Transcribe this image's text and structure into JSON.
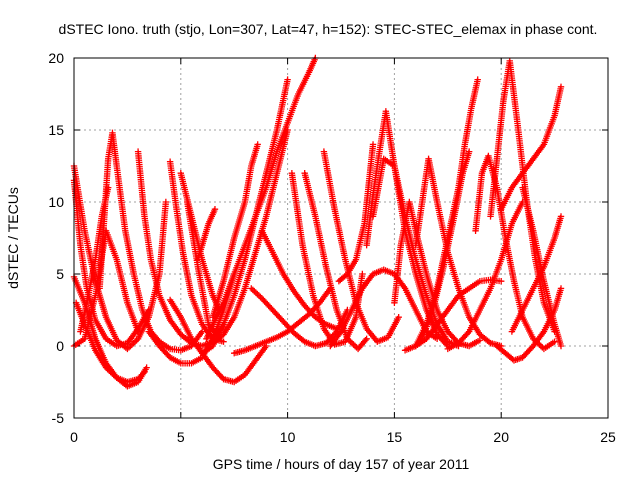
{
  "chart_data": {
    "type": "scatter",
    "title": "dSTEC Iono. truth (stjo, Lon=307, Lat=47, h=152): STEC-STEC_elemax in phase cont.",
    "xlabel": "GPS time / hours of day 157 of year 2011",
    "ylabel": "dSTEC  / TECUs",
    "xlim": [
      0,
      25
    ],
    "ylim": [
      -5,
      20
    ],
    "xticks": [
      "0",
      "5",
      "10",
      "15",
      "20",
      "25"
    ],
    "yticks": [
      "-5",
      "0",
      "5",
      "10",
      "15",
      "20"
    ],
    "grid": true,
    "marker": "+",
    "color": "#ff0000",
    "series": [
      {
        "x": [
          0.0,
          0.3,
          0.6,
          1.0,
          1.5,
          2.0,
          2.5,
          3.0,
          3.5
        ],
        "y": [
          11.5,
          7.0,
          4.0,
          1.8,
          0.5,
          0.0,
          0.2,
          1.2,
          2.5
        ]
      },
      {
        "x": [
          0.0,
          0.5,
          1.0,
          1.5,
          2.0,
          2.5,
          3.0,
          3.5,
          4.0,
          4.3
        ],
        "y": [
          12.5,
          8.0,
          4.5,
          2.0,
          0.4,
          -0.2,
          0.5,
          2.0,
          5.0,
          10.0
        ]
      },
      {
        "x": [
          0.0,
          0.5,
          1.0,
          1.5,
          2.0,
          2.5,
          3.0,
          3.4
        ],
        "y": [
          4.8,
          3.0,
          0.5,
          -1.2,
          -2.2,
          -2.8,
          -2.5,
          -1.5
        ]
      },
      {
        "x": [
          0.1,
          0.5,
          1.0,
          1.5,
          2.0,
          2.5,
          3.0,
          3.3
        ],
        "y": [
          3.0,
          1.5,
          -0.3,
          -1.5,
          -2.2,
          -2.5,
          -2.3,
          -1.8
        ]
      },
      {
        "x": [
          0.0,
          0.5,
          1.0,
          1.5,
          2.0,
          2.5,
          3.0
        ],
        "y": [
          0.0,
          0.5,
          3.5,
          8.0,
          6.0,
          3.0,
          1.0
        ]
      },
      {
        "x": [
          0.3,
          0.6,
          1.0,
          1.3,
          1.6
        ],
        "y": [
          1.0,
          3.0,
          6.0,
          9.0,
          11.0
        ]
      },
      {
        "x": [
          1.2,
          1.4,
          1.6,
          1.8,
          2.0,
          2.4,
          2.8,
          3.2,
          3.6,
          4.0,
          4.5,
          5.0,
          5.5,
          6.0
        ],
        "y": [
          4.0,
          8.5,
          13.0,
          14.8,
          12.5,
          8.0,
          5.0,
          2.5,
          1.0,
          0.3,
          -0.2,
          -0.3,
          0.0,
          1.0
        ]
      },
      {
        "x": [
          3.0,
          3.3,
          3.6,
          4.0,
          4.5,
          5.0,
          5.5,
          6.0,
          6.5
        ],
        "y": [
          13.5,
          9.0,
          6.0,
          3.5,
          1.8,
          0.8,
          0.2,
          0.0,
          0.3
        ]
      },
      {
        "x": [
          3.5,
          4.0,
          4.5,
          5.0,
          5.5,
          6.0,
          6.5,
          7.0,
          7.5
        ],
        "y": [
          1.0,
          0.0,
          -0.8,
          -1.2,
          -1.2,
          -0.8,
          0.5,
          2.5,
          5.0
        ]
      },
      {
        "x": [
          4.5,
          4.8,
          5.1,
          5.5,
          6.0,
          6.5,
          7.0
        ],
        "y": [
          12.8,
          9.5,
          6.5,
          3.5,
          1.5,
          0.5,
          0.3
        ]
      },
      {
        "x": [
          4.5,
          5.0,
          5.5,
          6.0,
          6.5,
          7.0,
          7.5,
          8.0,
          8.5,
          9.0
        ],
        "y": [
          3.2,
          2.0,
          0.5,
          -0.5,
          -1.5,
          -2.3,
          -2.5,
          -2.0,
          -1.0,
          0.0
        ]
      },
      {
        "x": [
          5.0,
          5.5,
          6.0,
          6.5,
          6.8
        ],
        "y": [
          12.0,
          9.0,
          6.0,
          3.5,
          2.5
        ]
      },
      {
        "x": [
          5.3,
          5.8,
          6.3,
          6.7,
          7.0
        ],
        "y": [
          10.0,
          5.5,
          1.5,
          0.8,
          1.5
        ]
      },
      {
        "x": [
          5.8,
          6.0,
          6.3,
          6.6
        ],
        "y": [
          6.0,
          7.0,
          8.5,
          9.5
        ]
      },
      {
        "x": [
          6.2,
          6.5,
          7.0,
          7.5,
          8.0,
          8.5,
          9.0,
          9.5,
          10.0,
          10.5,
          11.0,
          11.3
        ],
        "y": [
          0.5,
          1.5,
          3.0,
          5.0,
          7.0,
          9.0,
          11.0,
          13.5,
          15.5,
          17.5,
          19.0,
          20.0
        ]
      },
      {
        "x": [
          6.5,
          7.0,
          7.5,
          8.0,
          8.5,
          9.0,
          9.5,
          10.0
        ],
        "y": [
          0.2,
          0.8,
          2.0,
          4.0,
          6.5,
          9.0,
          12.0,
          15.0
        ]
      },
      {
        "x": [
          6.0,
          6.5,
          7.0,
          7.5,
          8.0,
          8.5,
          9.0,
          9.5,
          10.0
        ],
        "y": [
          -0.5,
          0.0,
          1.5,
          3.5,
          6.0,
          9.0,
          12.0,
          15.0,
          18.5
        ]
      },
      {
        "x": [
          6.5,
          7.0,
          7.5,
          8.0,
          8.3,
          8.6
        ],
        "y": [
          2.0,
          4.5,
          7.5,
          10.0,
          12.5,
          14.0
        ]
      },
      {
        "x": [
          7.5,
          8.0,
          8.5,
          9.0,
          9.5,
          10.0,
          10.5,
          11.0,
          11.5,
          12.0
        ],
        "y": [
          -0.5,
          -0.3,
          0.0,
          0.3,
          0.6,
          1.0,
          1.6,
          2.2,
          3.0,
          4.0
        ]
      },
      {
        "x": [
          8.3,
          8.8,
          9.3,
          9.8,
          10.3,
          10.8,
          11.3,
          11.8,
          12.3,
          12.8
        ],
        "y": [
          4.0,
          3.3,
          2.5,
          1.7,
          0.9,
          0.3,
          0.0,
          0.2,
          1.0,
          2.5
        ]
      },
      {
        "x": [
          8.8,
          9.3,
          9.8,
          10.3,
          10.8,
          11.3,
          11.8,
          12.3
        ],
        "y": [
          8.0,
          6.5,
          5.0,
          3.8,
          2.8,
          2.0,
          1.5,
          1.2
        ]
      },
      {
        "x": [
          10.2,
          10.7,
          11.2,
          11.7,
          12.2,
          12.7,
          13.2,
          13.5
        ],
        "y": [
          12.0,
          7.0,
          3.5,
          1.2,
          0.1,
          0.3,
          2.0,
          5.0
        ]
      },
      {
        "x": [
          10.8,
          11.3,
          11.8,
          12.3,
          12.8,
          13.3,
          13.7
        ],
        "y": [
          12.0,
          9.0,
          5.5,
          2.5,
          0.5,
          -0.2,
          0.5
        ]
      },
      {
        "x": [
          11.7,
          12.2,
          12.7,
          13.2,
          13.7,
          14.2,
          14.7,
          15.2
        ],
        "y": [
          13.5,
          9.5,
          6.0,
          3.0,
          1.2,
          0.3,
          0.6,
          2.0
        ]
      },
      {
        "x": [
          12.4,
          12.8,
          13.2,
          13.6,
          14.0
        ],
        "y": [
          4.5,
          5.0,
          6.0,
          8.5,
          14.0
        ]
      },
      {
        "x": [
          12.0,
          12.5,
          13.0,
          13.5,
          14.0,
          14.5,
          15.0,
          15.5,
          16.0,
          16.5,
          17.0
        ],
        "y": [
          0.0,
          1.0,
          2.5,
          4.0,
          5.0,
          5.3,
          5.0,
          4.0,
          2.5,
          1.0,
          0.5
        ]
      },
      {
        "x": [
          13.7,
          14.0,
          14.3,
          14.6,
          15.0,
          15.5,
          16.0,
          16.5,
          17.0,
          17.5
        ],
        "y": [
          7.0,
          10.5,
          13.5,
          16.3,
          12.5,
          8.0,
          5.0,
          2.5,
          0.8,
          0.0
        ]
      },
      {
        "x": [
          14.0,
          14.5,
          15.0,
          15.5,
          16.0,
          16.5,
          17.0,
          17.5,
          18.0
        ],
        "y": [
          9.0,
          13.0,
          12.5,
          9.0,
          6.0,
          3.5,
          1.5,
          0.3,
          0.0
        ]
      },
      {
        "x": [
          15.0,
          15.3,
          15.7,
          16.0,
          16.5,
          17.0,
          17.5,
          18.0,
          18.5,
          19.0
        ],
        "y": [
          3.0,
          7.0,
          10.0,
          8.0,
          5.0,
          2.5,
          1.0,
          0.2,
          0.0,
          0.4
        ]
      },
      {
        "x": [
          16.0,
          16.3,
          16.6,
          17.0,
          17.5,
          18.0,
          18.5,
          19.0,
          19.5,
          20.0
        ],
        "y": [
          7.0,
          10.0,
          13.0,
          10.0,
          6.5,
          4.0,
          2.0,
          0.8,
          0.2,
          0.0
        ]
      },
      {
        "x": [
          16.0,
          16.5,
          17.0,
          17.5,
          18.0,
          18.3,
          18.6,
          18.9
        ],
        "y": [
          0.0,
          1.5,
          4.0,
          7.5,
          11.0,
          14.0,
          16.5,
          18.5
        ]
      },
      {
        "x": [
          16.3,
          16.8,
          17.3,
          17.8,
          18.2,
          18.5
        ],
        "y": [
          0.5,
          2.5,
          5.5,
          9.0,
          12.0,
          13.5
        ]
      },
      {
        "x": [
          15.5,
          16.0,
          16.5,
          17.0,
          17.5,
          18.0,
          18.5,
          19.0,
          19.5,
          20.0
        ],
        "y": [
          -0.3,
          0.0,
          0.5,
          1.5,
          2.5,
          3.5,
          4.0,
          4.5,
          4.6,
          4.5
        ]
      },
      {
        "x": [
          17.5,
          18.0,
          18.5,
          19.0,
          19.5,
          20.0,
          20.5,
          21.0
        ],
        "y": [
          -0.2,
          0.2,
          1.0,
          2.5,
          4.0,
          6.0,
          8.5,
          10.0
        ]
      },
      {
        "x": [
          18.8,
          19.1,
          19.4,
          19.8,
          20.2,
          20.6,
          21.0,
          21.5,
          22.0,
          22.5
        ],
        "y": [
          8.0,
          12.0,
          13.2,
          11.0,
          7.5,
          4.5,
          2.0,
          0.5,
          -0.2,
          0.3
        ]
      },
      {
        "x": [
          19.5,
          19.8,
          20.1,
          20.4,
          20.8,
          21.2,
          21.6,
          22.0,
          22.5
        ],
        "y": [
          9.0,
          13.0,
          17.0,
          19.8,
          15.0,
          10.0,
          6.0,
          3.0,
          1.0
        ]
      },
      {
        "x": [
          19.8,
          20.2,
          20.6,
          21.0,
          21.5,
          22.0,
          22.5,
          22.8
        ],
        "y": [
          0.0,
          -0.5,
          -1.0,
          -0.8,
          0.0,
          1.0,
          2.5,
          4.0
        ]
      },
      {
        "x": [
          20.0,
          20.5,
          21.0,
          21.5,
          22.0,
          22.5,
          22.8
        ],
        "y": [
          9.5,
          11.0,
          12.0,
          13.0,
          14.0,
          16.0,
          18.0
        ]
      },
      {
        "x": [
          20.5,
          21.0,
          21.5,
          22.0,
          22.5,
          22.8
        ],
        "y": [
          1.0,
          2.5,
          4.0,
          5.5,
          7.5,
          9.0
        ]
      },
      {
        "x": [
          21.0,
          21.5,
          22.0,
          22.5,
          22.8
        ],
        "y": [
          11.0,
          8.0,
          4.5,
          1.5,
          0.0
        ]
      }
    ]
  }
}
